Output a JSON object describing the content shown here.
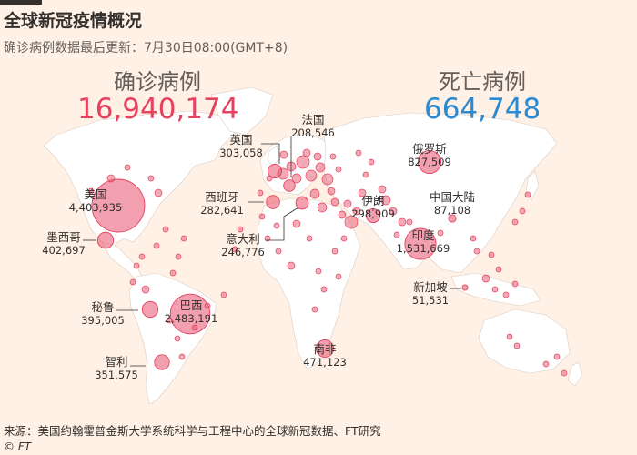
{
  "header": {
    "title": "全球新冠疫情概况",
    "subtitle": "确诊病例数据最后更新：7月30日08:00(GMT+8)"
  },
  "totals": {
    "cases_label": "确诊病例",
    "cases_value": "16,940,174",
    "deaths_label": "死亡病例",
    "deaths_value": "664,748"
  },
  "colors": {
    "background": "#fff1e5",
    "land": "#ffffff",
    "bubble": "#e5425f",
    "cases_text": "#e5425f",
    "deaths_text": "#2c8ad0"
  },
  "countries": [
    {
      "name": "美国",
      "cases": "4,403,935"
    },
    {
      "name": "巴西",
      "cases": "2,483,191"
    },
    {
      "name": "印度",
      "cases": "1,531,669"
    },
    {
      "name": "俄罗斯",
      "cases": "827,509"
    },
    {
      "name": "南非",
      "cases": "471,123"
    },
    {
      "name": "墨西哥",
      "cases": "402,697"
    },
    {
      "name": "秘鲁",
      "cases": "395,005"
    },
    {
      "name": "智利",
      "cases": "351,575"
    },
    {
      "name": "英国",
      "cases": "303,058"
    },
    {
      "name": "伊朗",
      "cases": "298,909"
    },
    {
      "name": "西班牙",
      "cases": "282,641"
    },
    {
      "name": "意大利",
      "cases": "246,776"
    },
    {
      "name": "法国",
      "cases": "208,546"
    },
    {
      "name": "中国大陆",
      "cases": "87,108"
    },
    {
      "name": "新加坡",
      "cases": "51,531"
    }
  ],
  "footer": {
    "source": "来源：美国约翰霍普金斯大学系统科学与工程中心的全球新冠数据、FT研究",
    "credit": "© FT"
  }
}
